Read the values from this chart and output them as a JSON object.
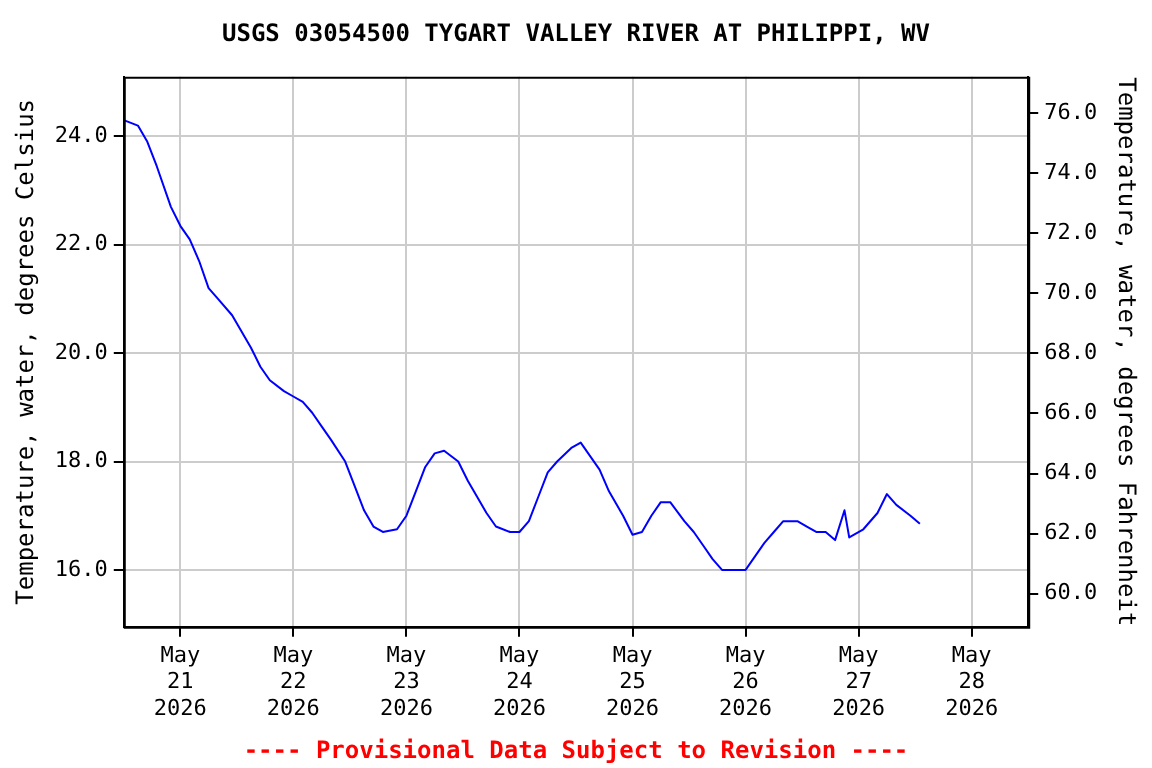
{
  "chart_data": {
    "type": "line",
    "title": "USGS 03054500 TYGART VALLEY RIVER AT PHILIPPI, WV",
    "ylabel": "Temperature, water, degrees Celsius",
    "y2label": "Temperature, water, degrees Fahrenheit",
    "annotations": [
      "---- Provisional Data Subject to Revision ----"
    ],
    "x": [
      "2026-05-20T12:00",
      "2026-05-20T15:00",
      "2026-05-20T17:00",
      "2026-05-20T19:00",
      "2026-05-20T22:00",
      "2026-05-21T00:00",
      "2026-05-21T02:00",
      "2026-05-21T04:00",
      "2026-05-21T06:00",
      "2026-05-21T08:00",
      "2026-05-21T11:00",
      "2026-05-21T13:00",
      "2026-05-21T15:00",
      "2026-05-21T17:00",
      "2026-05-21T19:00",
      "2026-05-21T22:00",
      "2026-05-22T00:00",
      "2026-05-22T02:00",
      "2026-05-22T04:00",
      "2026-05-22T06:00",
      "2026-05-22T08:00",
      "2026-05-22T11:00",
      "2026-05-22T13:00",
      "2026-05-22T15:00",
      "2026-05-22T17:00",
      "2026-05-22T19:00",
      "2026-05-22T22:00",
      "2026-05-23T00:00",
      "2026-05-23T02:00",
      "2026-05-23T04:00",
      "2026-05-23T06:00",
      "2026-05-23T08:00",
      "2026-05-23T11:00",
      "2026-05-23T13:00",
      "2026-05-23T15:00",
      "2026-05-23T17:00",
      "2026-05-23T19:00",
      "2026-05-23T22:00",
      "2026-05-24T00:00",
      "2026-05-24T02:00",
      "2026-05-24T04:00",
      "2026-05-24T06:00",
      "2026-05-24T08:00",
      "2026-05-24T11:00",
      "2026-05-24T13:00",
      "2026-05-24T15:00",
      "2026-05-24T17:00",
      "2026-05-24T19:00",
      "2026-05-24T22:00",
      "2026-05-25T00:00",
      "2026-05-25T02:00",
      "2026-05-25T04:00",
      "2026-05-25T06:00",
      "2026-05-25T08:00",
      "2026-05-25T11:00",
      "2026-05-25T13:00",
      "2026-05-25T15:00",
      "2026-05-25T17:00",
      "2026-05-25T19:00",
      "2026-05-25T22:00",
      "2026-05-26T00:00",
      "2026-05-26T02:00",
      "2026-05-26T04:00",
      "2026-05-26T06:00",
      "2026-05-26T08:00",
      "2026-05-26T11:00",
      "2026-05-26T13:00",
      "2026-05-26T15:00",
      "2026-05-26T17:00",
      "2026-05-26T19:00",
      "2026-05-26T21:00",
      "2026-05-26T22:00",
      "2026-05-27T01:00",
      "2026-05-27T04:00",
      "2026-05-27T06:00",
      "2026-05-27T08:00",
      "2026-05-27T11:00",
      "2026-05-27T13:00"
    ],
    "series": [
      {
        "color": "#0000ff",
        "values": [
          24.3,
          24.2,
          23.9,
          23.45,
          22.7,
          22.35,
          22.1,
          21.7,
          21.2,
          21.0,
          20.7,
          20.4,
          20.1,
          19.75,
          19.5,
          19.3,
          19.2,
          19.1,
          18.9,
          18.65,
          18.4,
          18.0,
          17.55,
          17.1,
          16.8,
          16.7,
          16.75,
          17.0,
          17.45,
          17.9,
          18.15,
          18.2,
          18.0,
          17.65,
          17.35,
          17.05,
          16.8,
          16.7,
          16.7,
          16.9,
          17.35,
          17.8,
          18.0,
          18.25,
          18.35,
          18.1,
          17.85,
          17.45,
          17.0,
          16.65,
          16.7,
          17.0,
          17.25,
          17.25,
          16.9,
          16.7,
          16.45,
          16.2,
          16.0,
          16.0,
          16.0,
          16.25,
          16.5,
          16.7,
          16.9,
          16.9,
          16.8,
          16.7,
          16.7,
          16.55,
          17.1,
          16.6,
          16.75,
          17.05,
          17.4,
          17.2,
          17.0,
          16.85
        ]
      }
    ],
    "xlim": [
      "2026-05-20T12:00",
      "2026-05-28T12:00"
    ],
    "xticks": [
      {
        "value": "2026-05-21",
        "label": "May\n21\n2026"
      },
      {
        "value": "2026-05-22",
        "label": "May\n22\n2026"
      },
      {
        "value": "2026-05-23",
        "label": "May\n23\n2026"
      },
      {
        "value": "2026-05-24",
        "label": "May\n24\n2026"
      },
      {
        "value": "2026-05-25",
        "label": "May\n25\n2026"
      },
      {
        "value": "2026-05-26",
        "label": "May\n26\n2026"
      },
      {
        "value": "2026-05-27",
        "label": "May\n27\n2026"
      },
      {
        "value": "2026-05-28",
        "label": "May\n28\n2026"
      }
    ],
    "ylim": [
      14.95,
      25.1
    ],
    "yticks": [
      {
        "value": 16,
        "label": "16.0"
      },
      {
        "value": 18,
        "label": "18.0"
      },
      {
        "value": 20,
        "label": "20.0"
      },
      {
        "value": 22,
        "label": "22.0"
      },
      {
        "value": 24,
        "label": "24.0"
      }
    ],
    "y2lim": [
      58.9,
      77.2
    ],
    "y2ticks": [
      {
        "value": 60,
        "label": "60.0"
      },
      {
        "value": 62,
        "label": "62.0"
      },
      {
        "value": 64,
        "label": "64.0"
      },
      {
        "value": 66,
        "label": "66.0"
      },
      {
        "value": 68,
        "label": "68.0"
      },
      {
        "value": 70,
        "label": "70.0"
      },
      {
        "value": 72,
        "label": "72.0"
      },
      {
        "value": 74,
        "label": "74.0"
      },
      {
        "value": 76,
        "label": "76.0"
      }
    ],
    "grid": true,
    "legend": false,
    "marker": "none",
    "line_style": "solid"
  }
}
